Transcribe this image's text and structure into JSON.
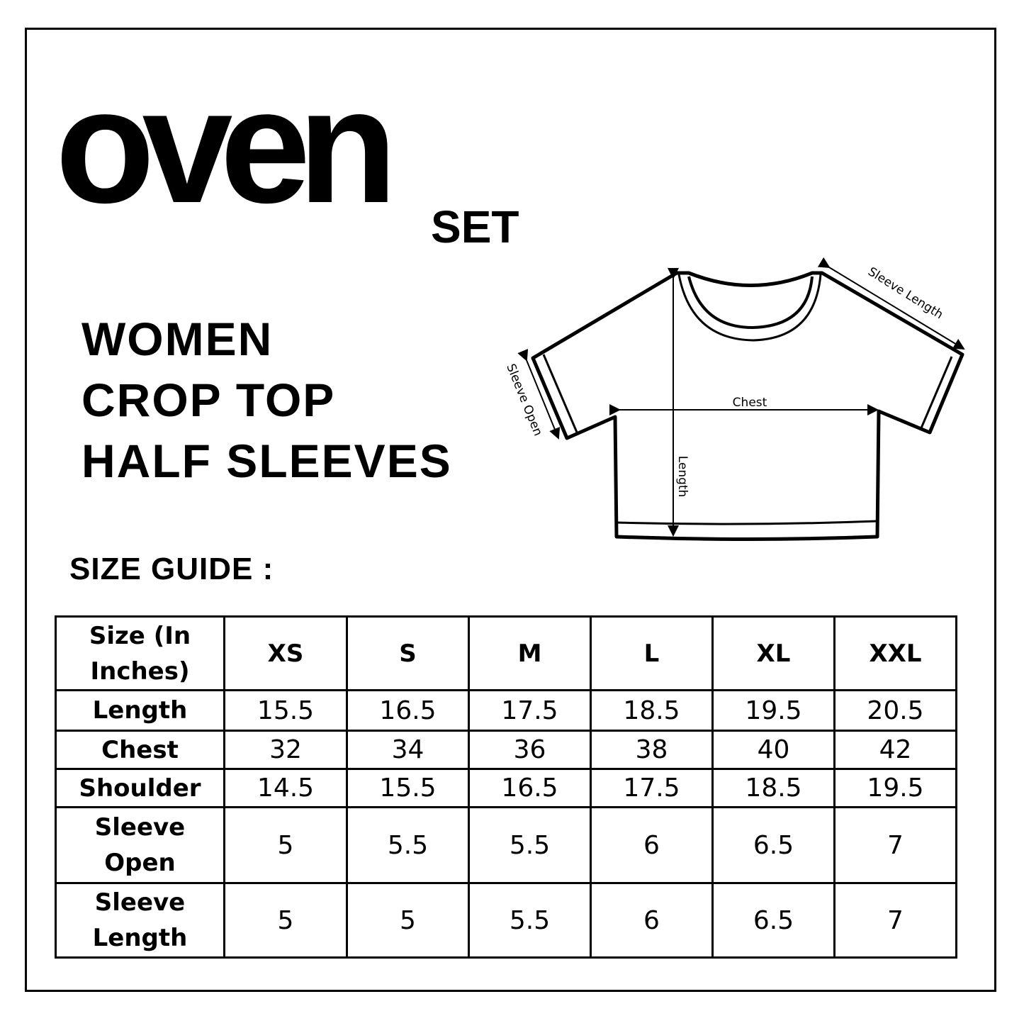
{
  "logo": {
    "text": "oven",
    "suffix": "SET"
  },
  "title": [
    "WOMEN",
    "CROP TOP",
    "HALF SLEEVES"
  ],
  "size_guide_label": "SIZE GUIDE :",
  "diagram": {
    "sleeve_length": "Sleeve Length",
    "sleeve_open": "Sleeve Open",
    "chest": "Chest",
    "length": "Length"
  },
  "table": {
    "header_label": [
      "Size (In",
      "Inches)"
    ],
    "sizes": [
      "XS",
      "S",
      "M",
      "L",
      "XL",
      "XXL"
    ],
    "rows": [
      {
        "label": [
          "Length"
        ],
        "values": [
          "15.5",
          "16.5",
          "17.5",
          "18.5",
          "19.5",
          "20.5"
        ]
      },
      {
        "label": [
          "Chest"
        ],
        "values": [
          "32",
          "34",
          "36",
          "38",
          "40",
          "42"
        ]
      },
      {
        "label": [
          "Shoulder"
        ],
        "values": [
          "14.5",
          "15.5",
          "16.5",
          "17.5",
          "18.5",
          "19.5"
        ]
      },
      {
        "label": [
          "Sleeve",
          "Open"
        ],
        "values": [
          "5",
          "5.5",
          "5.5",
          "6",
          "6.5",
          "7"
        ]
      },
      {
        "label": [
          "Sleeve",
          "Length"
        ],
        "values": [
          "5",
          "5",
          "5.5",
          "6",
          "6.5",
          "7"
        ]
      }
    ]
  }
}
